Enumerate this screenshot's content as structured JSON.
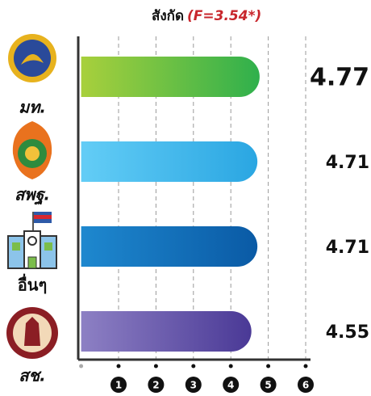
{
  "chart_data": {
    "type": "hbar",
    "title": "สังกัด",
    "subtitle": "(F=3.54*)",
    "categories": [
      "มท.",
      "สพฐ.",
      "อื่นๆ",
      "สช."
    ],
    "values": [
      4.77,
      4.71,
      4.71,
      4.55
    ],
    "colors": [
      [
        "#a8d03c",
        "#2fb04c"
      ],
      [
        "#63cdf6",
        "#2aa6e2"
      ],
      [
        "#1e88cf",
        "#0a5aa5"
      ],
      [
        "#8d80c4",
        "#4a3996"
      ]
    ],
    "xlim": [
      0,
      6
    ],
    "xticks": [
      1,
      2,
      3,
      4,
      5,
      6
    ],
    "grid": true
  }
}
